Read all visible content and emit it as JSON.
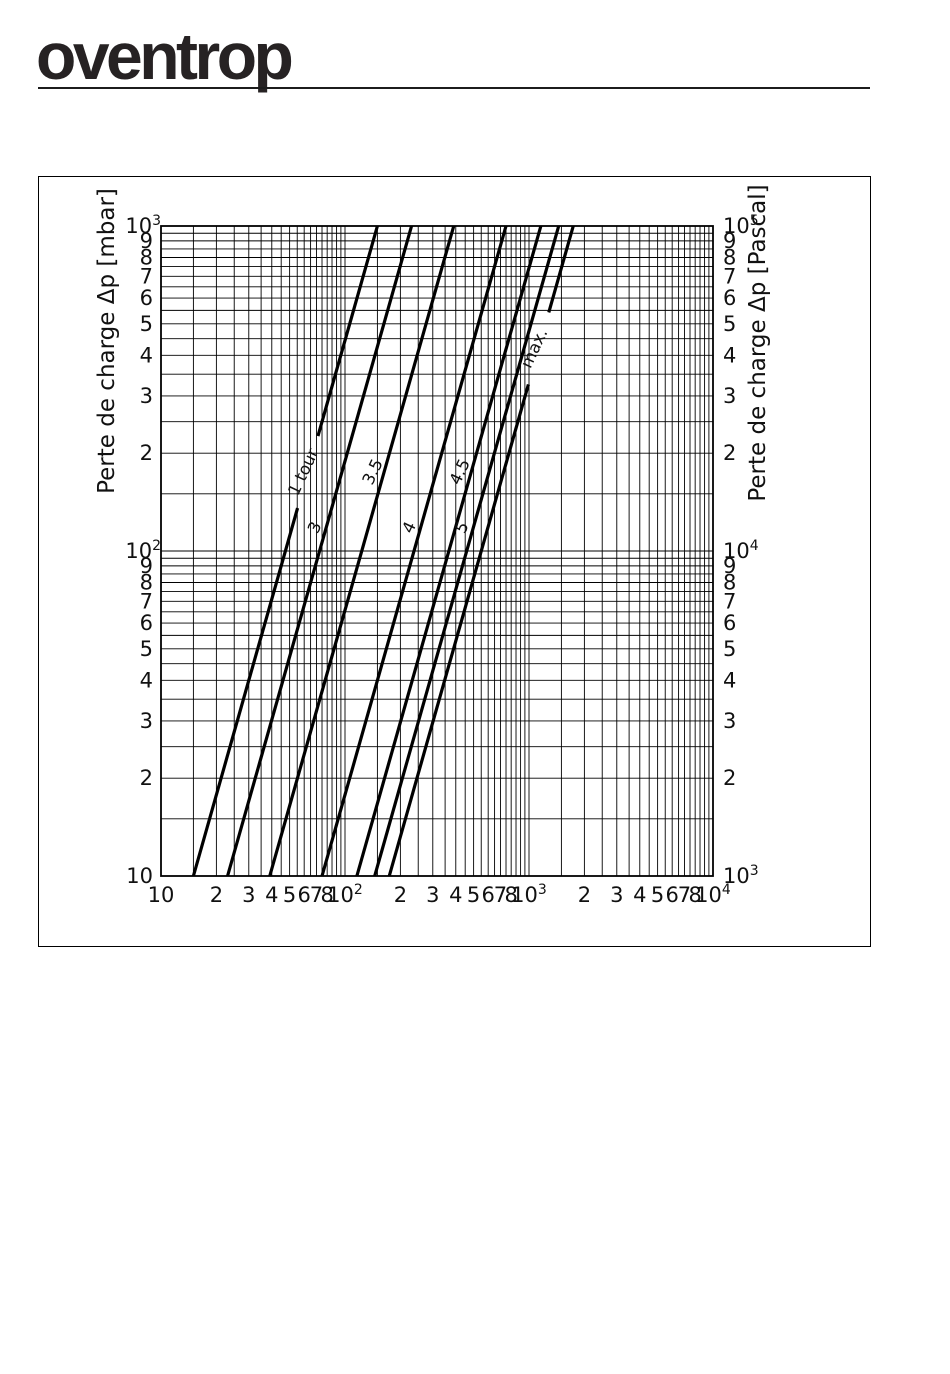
{
  "logo": {
    "text": "oventrop"
  },
  "chart_data": {
    "type": "line",
    "title": "",
    "scale": "log-log",
    "grid": "on (log grid, integer and half-step lines)",
    "legend_position": "labels on curves",
    "x_axis": {
      "label": "",
      "min": 10,
      "max": 10000,
      "ticks": [
        {
          "v": 10,
          "t": "10"
        },
        {
          "v": 20,
          "t": "2"
        },
        {
          "v": 30,
          "t": "3"
        },
        {
          "v": 40,
          "t": "4"
        },
        {
          "v": 50,
          "t": "5"
        },
        {
          "v": 60,
          "t": "6"
        },
        {
          "v": 70,
          "t": "7"
        },
        {
          "v": 80,
          "t": "8"
        },
        {
          "v": 100,
          "t": "10",
          "e": "2"
        },
        {
          "v": 200,
          "t": "2"
        },
        {
          "v": 300,
          "t": "3"
        },
        {
          "v": 400,
          "t": "4"
        },
        {
          "v": 500,
          "t": "5"
        },
        {
          "v": 600,
          "t": "6"
        },
        {
          "v": 700,
          "t": "7"
        },
        {
          "v": 800,
          "t": "8"
        },
        {
          "v": 1000,
          "t": "10",
          "e": "3"
        },
        {
          "v": 2000,
          "t": "2"
        },
        {
          "v": 3000,
          "t": "3"
        },
        {
          "v": 4000,
          "t": "4"
        },
        {
          "v": 5000,
          "t": "5"
        },
        {
          "v": 6000,
          "t": "6"
        },
        {
          "v": 7000,
          "t": "7"
        },
        {
          "v": 8000,
          "t": "8"
        },
        {
          "v": 10000,
          "t": "10",
          "e": "4"
        }
      ]
    },
    "y_axis_left": {
      "label": "Perte de charge Δp [mbar]",
      "min": 10,
      "max": 1000,
      "ticks": [
        {
          "v": 1000,
          "t": "10",
          "e": "3"
        },
        {
          "v": 900,
          "t": "9"
        },
        {
          "v": 800,
          "t": "8"
        },
        {
          "v": 700,
          "t": "7"
        },
        {
          "v": 600,
          "t": "6"
        },
        {
          "v": 500,
          "t": "5"
        },
        {
          "v": 400,
          "t": "4"
        },
        {
          "v": 300,
          "t": "3"
        },
        {
          "v": 200,
          "t": "2"
        },
        {
          "v": 100,
          "t": "10",
          "e": "2"
        },
        {
          "v": 90,
          "t": "9"
        },
        {
          "v": 80,
          "t": "8"
        },
        {
          "v": 70,
          "t": "7"
        },
        {
          "v": 60,
          "t": "6"
        },
        {
          "v": 50,
          "t": "5"
        },
        {
          "v": 40,
          "t": "4"
        },
        {
          "v": 30,
          "t": "3"
        },
        {
          "v": 20,
          "t": "2"
        },
        {
          "v": 10,
          "t": "10"
        }
      ]
    },
    "y_axis_right": {
      "label": "Perte de charge Δp [Pascal]",
      "min": 1000,
      "max": 100000,
      "ticks": [
        {
          "v": 100000,
          "t": "10",
          "e": "5"
        },
        {
          "v": 90000,
          "t": "9"
        },
        {
          "v": 80000,
          "t": "8"
        },
        {
          "v": 70000,
          "t": "7"
        },
        {
          "v": 60000,
          "t": "6"
        },
        {
          "v": 50000,
          "t": "5"
        },
        {
          "v": 40000,
          "t": "4"
        },
        {
          "v": 30000,
          "t": "3"
        },
        {
          "v": 20000,
          "t": "2"
        },
        {
          "v": 10000,
          "t": "10",
          "e": "4"
        },
        {
          "v": 9000,
          "t": "9"
        },
        {
          "v": 8000,
          "t": "8"
        },
        {
          "v": 7000,
          "t": "7"
        },
        {
          "v": 6000,
          "t": "6"
        },
        {
          "v": 5000,
          "t": "5"
        },
        {
          "v": 4000,
          "t": "4"
        },
        {
          "v": 3000,
          "t": "3"
        },
        {
          "v": 2000,
          "t": "2"
        },
        {
          "v": 1000,
          "t": "10",
          "e": "3"
        }
      ]
    },
    "series": [
      {
        "label": "1 tour",
        "points": [
          [
            15,
            10
          ],
          [
            150,
            1000
          ]
        ],
        "label_dp": 175,
        "label_break": true
      },
      {
        "label": "3",
        "points": [
          [
            23,
            10
          ],
          [
            230,
            1000
          ]
        ],
        "label_dp": 118,
        "label_break": false
      },
      {
        "label": "3.5",
        "points": [
          [
            39,
            10
          ],
          [
            390,
            1000
          ]
        ],
        "label_dp": 175,
        "label_break": false
      },
      {
        "label": "4",
        "points": [
          [
            75,
            10
          ],
          [
            750,
            1000
          ]
        ],
        "label_dp": 118,
        "label_break": false
      },
      {
        "label": "4.5",
        "points": [
          [
            116,
            10
          ],
          [
            1160,
            1000
          ]
        ],
        "label_dp": 175,
        "label_break": false
      },
      {
        "label": "5",
        "points": [
          [
            145,
            10
          ],
          [
            1450,
            1000
          ]
        ],
        "label_dp": 118,
        "label_break": false
      },
      {
        "label": "max.",
        "points": [
          [
            174,
            10
          ],
          [
            1740,
            1000
          ]
        ],
        "label_dp": 420,
        "label_break": true
      }
    ]
  }
}
